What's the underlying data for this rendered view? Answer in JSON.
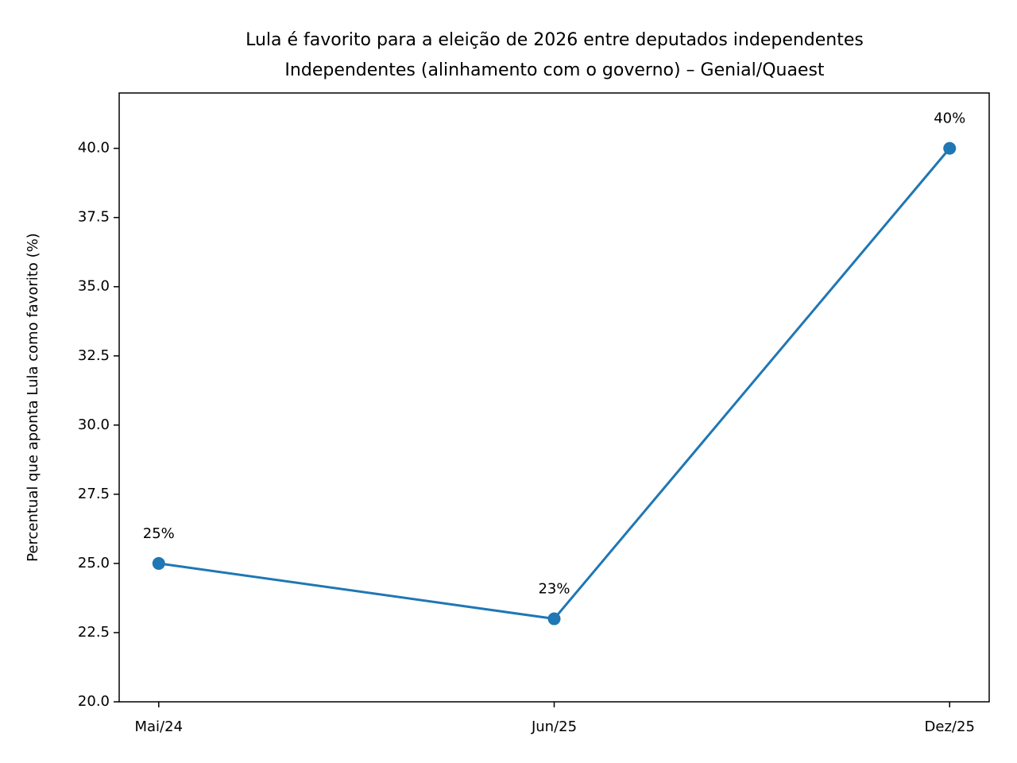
{
  "chart_data": {
    "type": "line",
    "title": "Lula é favorito para a eleição de 2026 entre deputados independentes",
    "subtitle": "Independentes (alinhamento com o governo) – Genial/Quaest",
    "y_label": "Percentual que aponta Lula como favorito (%)",
    "categories": [
      "Mai/24",
      "Jun/25",
      "Dez/25"
    ],
    "series": [
      {
        "color": "#1f77b4",
        "values": [
          25,
          23,
          40
        ],
        "value_labels": [
          "25%",
          "23%",
          "40%"
        ]
      }
    ],
    "ylim": [
      20,
      42
    ],
    "yticks": [
      {
        "value": 20,
        "label": "20.0"
      },
      {
        "value": 22.5,
        "label": "22.5"
      },
      {
        "value": 25,
        "label": "25.0"
      },
      {
        "value": 27.5,
        "label": "27.5"
      },
      {
        "value": 30,
        "label": "30.0"
      },
      {
        "value": 32.5,
        "label": "32.5"
      },
      {
        "value": 35,
        "label": "35.0"
      },
      {
        "value": 37.5,
        "label": "37.5"
      },
      {
        "value": 40,
        "label": "40.0"
      }
    ],
    "grid": false
  }
}
